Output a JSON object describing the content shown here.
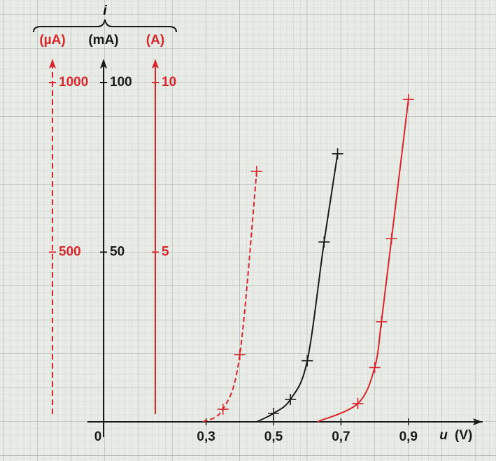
{
  "chart_data": {
    "type": "line",
    "y_label": "i",
    "x_label": "u",
    "x_unit": "(V)",
    "xlim": [
      0,
      1.12
    ],
    "xticks": [
      0,
      {
        "value": 0.3,
        "label": "0,3"
      },
      {
        "value": 0.5,
        "label": "0,5"
      },
      {
        "value": 0.7,
        "label": "0,7"
      },
      {
        "value": 0.9,
        "label": "0,9"
      }
    ],
    "axes": [
      {
        "label": "(µA)",
        "color": "#d8262c",
        "dashed": true,
        "ylim": [
          0,
          1070
        ],
        "yticks": [
          500,
          1000
        ]
      },
      {
        "label": "(mA)",
        "color": "#1a1a1a",
        "dashed": false,
        "ylim": [
          0,
          107
        ],
        "yticks": [
          50,
          100
        ]
      },
      {
        "label": "(A)",
        "color": "#d8262c",
        "dashed": false,
        "ylim": [
          0,
          10.7
        ],
        "yticks": [
          5,
          10
        ]
      }
    ],
    "series": [
      {
        "axis": 0,
        "color": "#d8262c",
        "dashed": true,
        "x": [
          0.29,
          0.35,
          0.4,
          0.45
        ],
        "values": [
          0,
          37,
          198,
          738
        ]
      },
      {
        "axis": 1,
        "color": "#1a1a1a",
        "dashed": false,
        "x": [
          0.45,
          0.5,
          0.55,
          0.6,
          0.65,
          0.69
        ],
        "values": [
          0,
          2.5,
          6.6,
          18,
          53,
          79
        ]
      },
      {
        "axis": 2,
        "color": "#d8262c",
        "dashed": false,
        "x": [
          0.63,
          0.75,
          0.8,
          0.82,
          0.85,
          0.9
        ],
        "values": [
          0,
          0.54,
          1.6,
          2.95,
          5.4,
          9.5
        ]
      }
    ]
  }
}
